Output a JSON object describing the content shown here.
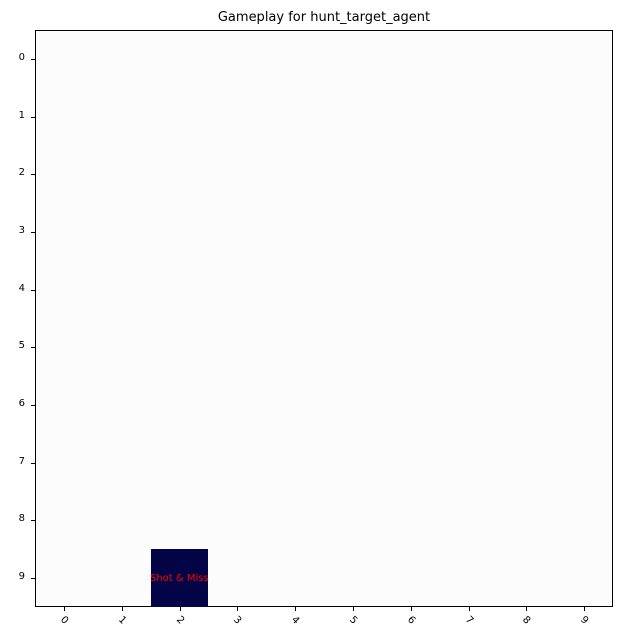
{
  "title": "Gameplay for hunt_target_agent",
  "chart_data": {
    "type": "heatmap",
    "rows": 10,
    "cols": 10,
    "x_ticks": [
      "0",
      "1",
      "2",
      "3",
      "4",
      "5",
      "6",
      "7",
      "8",
      "9"
    ],
    "y_ticks": [
      "0",
      "1",
      "2",
      "3",
      "4",
      "5",
      "6",
      "7",
      "8",
      "9"
    ],
    "background_color": "#fdfcfd",
    "cells": [
      {
        "row": 9,
        "col": 2,
        "label": "Shot & Miss",
        "color": "#020446",
        "label_color": "#ff0000"
      }
    ]
  }
}
